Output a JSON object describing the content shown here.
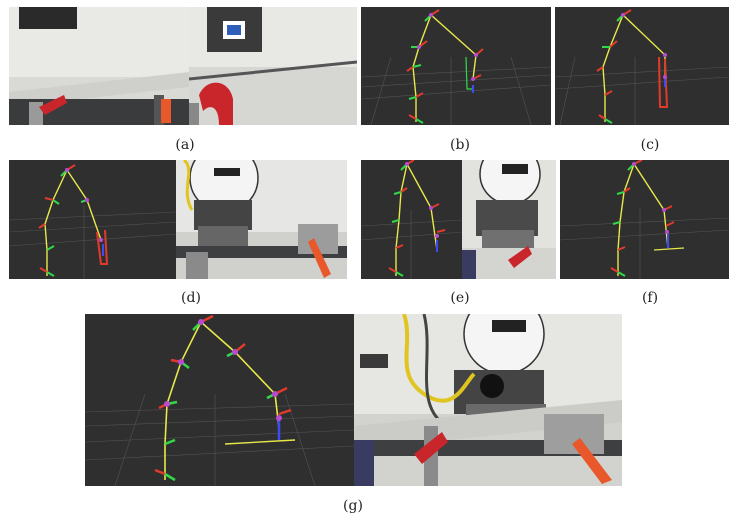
{
  "figure": {
    "captions": {
      "a": "(a)",
      "b": "(b)",
      "c": "(c)",
      "d": "(d)",
      "e": "(e)",
      "f": "(f)",
      "g": "(g)"
    }
  },
  "colors": {
    "sim_background": "#2f2f30",
    "grid_line": "#8a8a8a",
    "link": "#e8e84a",
    "axis_red": "#e23a2a",
    "axis_green": "#31d94a",
    "axis_blue": "#3b4cf0",
    "joint_magenta": "#b84ad0",
    "clamp_red": "#c8262a",
    "screwdriver_handle": "#e8582a",
    "camera_wall": "#e6e6e4",
    "table_surface": "#3e3f41"
  },
  "icons": {
    "robot_skeleton": "robot-arm-skeleton-icon",
    "photo": "photo-icon"
  }
}
